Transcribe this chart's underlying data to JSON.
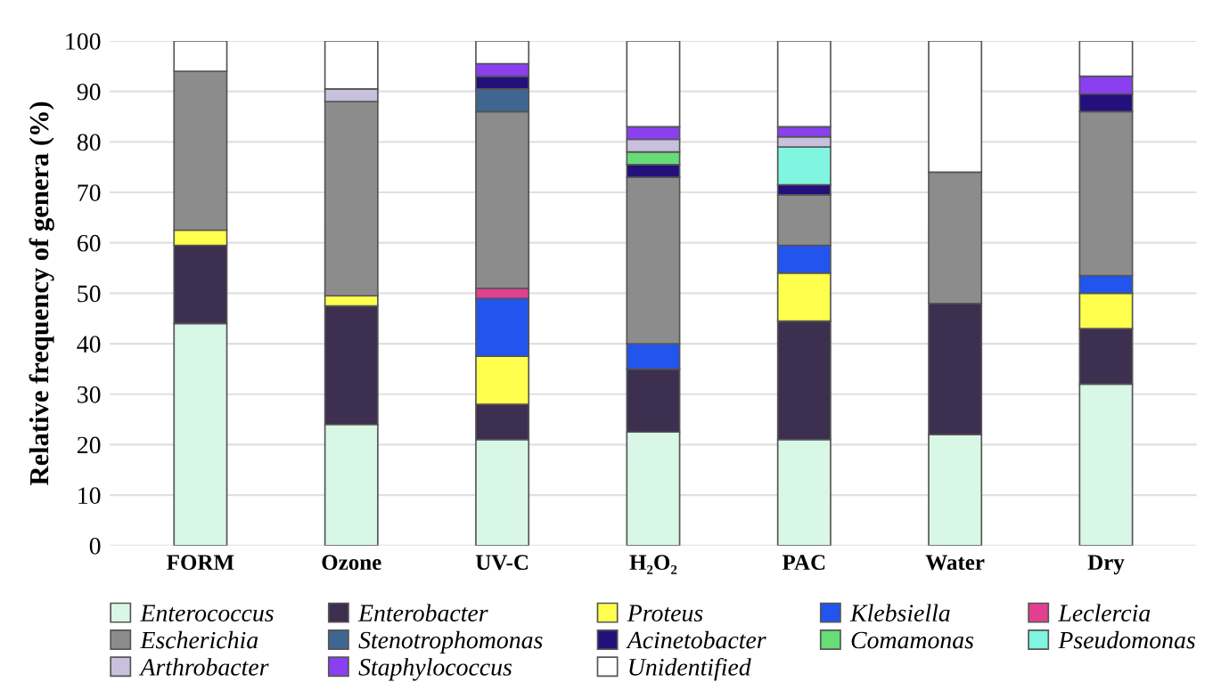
{
  "chart_data": {
    "type": "bar",
    "stacked": true,
    "ylabel": "Relative frequency of genera (%)",
    "categories": [
      "FORM",
      "Ozone",
      "UV-C",
      "H₂O₂",
      "PAC",
      "Water",
      "Dry"
    ],
    "ylim": [
      0,
      100
    ],
    "yticks": [
      0,
      10,
      20,
      30,
      40,
      50,
      60,
      70,
      80,
      90,
      100
    ],
    "grid": "y",
    "legend": "bottom",
    "series": [
      {
        "name": "Enterococcus",
        "color": "#d9f7e6",
        "values": [
          44,
          24,
          21,
          22.5,
          21,
          22,
          32
        ]
      },
      {
        "name": "Enterobacter",
        "color": "#3d2f4f",
        "values": [
          15.5,
          23.5,
          7,
          12.5,
          23.5,
          26,
          11
        ]
      },
      {
        "name": "Proteus",
        "color": "#ffff4d",
        "values": [
          3,
          2,
          9.5,
          null,
          9.5,
          null,
          7
        ]
      },
      {
        "name": "Klebsiella",
        "color": "#2255ee",
        "values": [
          null,
          null,
          11.5,
          5,
          5.5,
          null,
          3.5
        ]
      },
      {
        "name": "Leclercia",
        "color": "#e0408f",
        "values": [
          null,
          null,
          2,
          null,
          null,
          null,
          null
        ]
      },
      {
        "name": "Escherichia",
        "color": "#8c8c8c",
        "values": [
          31.5,
          38.5,
          35,
          33,
          10,
          26,
          32.5
        ]
      },
      {
        "name": "Stenotrophomonas",
        "color": "#3f6690",
        "values": [
          null,
          null,
          4.5,
          null,
          null,
          null,
          null
        ]
      },
      {
        "name": "Acinetobacter",
        "color": "#24107a",
        "values": [
          null,
          null,
          2.5,
          2.5,
          2,
          null,
          3.5
        ]
      },
      {
        "name": "Comamonas",
        "color": "#66dd77",
        "values": [
          null,
          null,
          null,
          2.5,
          null,
          null,
          null
        ]
      },
      {
        "name": "Pseudomonas",
        "color": "#80f5e0",
        "values": [
          null,
          null,
          null,
          null,
          7.5,
          null,
          null
        ]
      },
      {
        "name": "Arthrobacter",
        "color": "#c8c0dc",
        "values": [
          null,
          2.5,
          null,
          2.5,
          2,
          null,
          null
        ]
      },
      {
        "name": "Staphylococcus",
        "color": "#8a3ff0",
        "values": [
          null,
          null,
          2.5,
          2.5,
          2,
          null,
          3.5
        ]
      },
      {
        "name": "Unidentified",
        "color": "#ffffff",
        "values": [
          6,
          9.5,
          4.5,
          17,
          17,
          26,
          7
        ]
      }
    ]
  }
}
